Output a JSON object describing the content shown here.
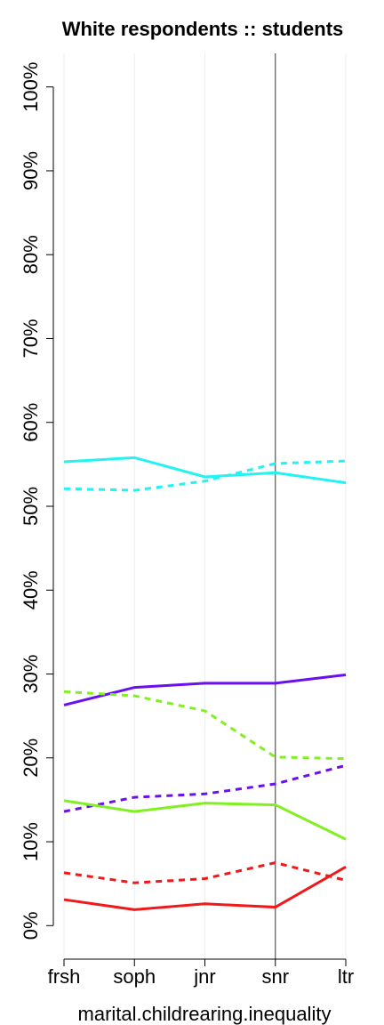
{
  "chart_data": {
    "type": "line",
    "title": "White respondents :: students",
    "xlabel": "marital.childrearing.inequality",
    "categories": [
      "frsh",
      "soph",
      "jnr",
      "snr",
      "ltr"
    ],
    "reference_line": "snr",
    "series": [
      {
        "color": "#22f2f2",
        "style": "solid",
        "values": [
          55.3,
          55.8,
          53.5,
          54.0,
          52.8
        ]
      },
      {
        "color": "#22f2f2",
        "style": "dashed",
        "values": [
          52.1,
          51.9,
          53.0,
          55.1,
          55.4
        ]
      },
      {
        "color": "#6a10f0",
        "style": "solid",
        "values": [
          26.3,
          28.4,
          28.9,
          28.9,
          29.9
        ]
      },
      {
        "color": "#80f020",
        "style": "dashed",
        "values": [
          27.9,
          27.4,
          25.6,
          20.1,
          19.9
        ]
      },
      {
        "color": "#6a10f0",
        "style": "dashed",
        "values": [
          13.6,
          15.3,
          15.7,
          16.9,
          19.1
        ]
      },
      {
        "color": "#80f020",
        "style": "solid",
        "values": [
          14.9,
          13.6,
          14.6,
          14.4,
          10.3
        ]
      },
      {
        "color": "#f01818",
        "style": "dashed",
        "values": [
          6.3,
          5.1,
          5.6,
          7.5,
          5.4
        ]
      },
      {
        "color": "#f01818",
        "style": "solid",
        "values": [
          3.1,
          1.9,
          2.6,
          2.2,
          7.0
        ]
      }
    ],
    "ylim": [
      -4,
      104
    ],
    "yticks": [
      {
        "value": 0,
        "label": "0%"
      },
      {
        "value": 10,
        "label": "10%"
      },
      {
        "value": 20,
        "label": "20%"
      },
      {
        "value": 30,
        "label": "30%"
      },
      {
        "value": 40,
        "label": "40%"
      },
      {
        "value": 50,
        "label": "50%"
      },
      {
        "value": 60,
        "label": "60%"
      },
      {
        "value": 70,
        "label": "70%"
      },
      {
        "value": 80,
        "label": "80%"
      },
      {
        "value": 90,
        "label": "90%"
      },
      {
        "value": 100,
        "label": "100%"
      }
    ],
    "grid": true
  }
}
